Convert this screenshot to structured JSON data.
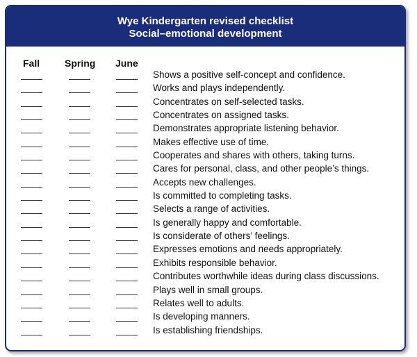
{
  "title": "Wye Kindergarten revised checklist",
  "subtitle": "Social–emotional development",
  "columns": [
    "Fall",
    "Spring",
    "June"
  ],
  "items": [
    "Shows a positive self-concept and confidence.",
    "Works and plays independently.",
    "Concentrates on self-selected tasks.",
    "Concentrates on assigned tasks.",
    "Demonstrates appropriate listening behavior.",
    "Makes effective use of time.",
    "Cooperates and shares with others, taking turns.",
    "Cares for personal, class, and other people’s things.",
    "Accepts new challenges.",
    "Is committed to completing tasks.",
    "Selects a range of activities.",
    "Is generally happy and comfortable.",
    "Is considerate of others’ feelings.",
    "Expresses emotions and needs appropriately.",
    "Exhibits responsible behavior.",
    "Contributes worthwhile ideas during class discussions.",
    "Plays well in small groups.",
    "Relates well to adults.",
    "Is developing manners.",
    "Is establishing friendships."
  ],
  "colors": {
    "header_bg": "#1a2d7a",
    "header_text": "#ffffff"
  }
}
